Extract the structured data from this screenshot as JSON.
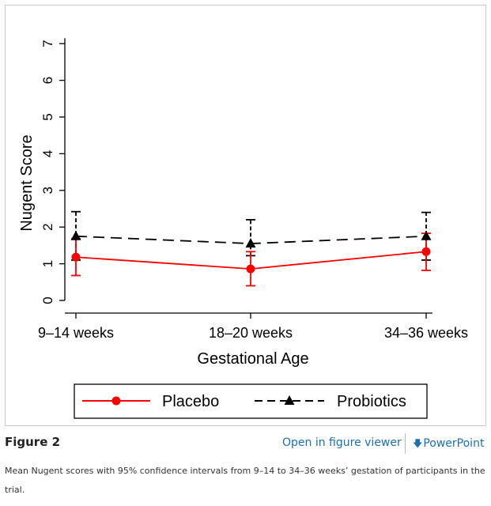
{
  "chart_data": {
    "type": "line",
    "title": "",
    "xlabel": "Gestational Age",
    "ylabel": "Nugent Score",
    "categories": [
      "9–14 weeks",
      "18–20 weeks",
      "34–36 weeks"
    ],
    "ylim": [
      0,
      7
    ],
    "yticks": [
      "0",
      "1",
      "2",
      "3",
      "4",
      "5",
      "6",
      "7"
    ],
    "grid": false,
    "legend_position": "bottom",
    "series": [
      {
        "name": "Placebo",
        "color": "#ff0000",
        "style": "solid",
        "marker": "circle",
        "values": [
          1.18,
          0.86,
          1.33
        ],
        "ci_low": [
          0.68,
          0.4,
          0.82
        ],
        "ci_high": [
          1.68,
          1.33,
          1.83
        ]
      },
      {
        "name": "Probiotics",
        "color": "#000000",
        "style": "dashed",
        "marker": "triangle",
        "values": [
          1.75,
          1.55,
          1.75
        ],
        "ci_low": [
          1.1,
          1.22,
          1.1
        ],
        "ci_high": [
          2.42,
          2.2,
          2.4
        ]
      }
    ]
  },
  "figure": {
    "label": "Figure 2",
    "open_viewer_label": "Open in figure viewer",
    "powerpoint_label": "PowerPoint",
    "caption": "Mean Nugent scores with 95% confidence intervals from 9–14 to 34–36 weeks’ gestation of participants in the trial."
  }
}
